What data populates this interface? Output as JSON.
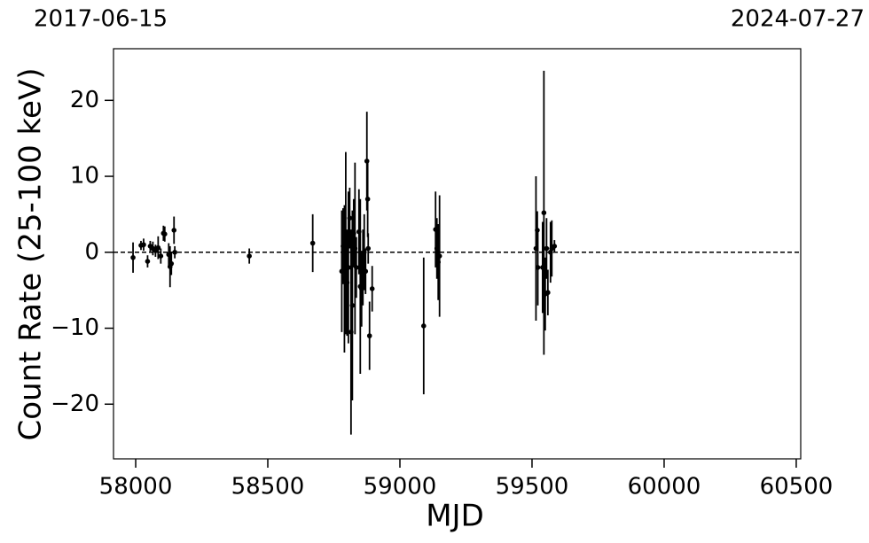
{
  "chart_data": {
    "type": "errorbar",
    "top_labels": [
      "2017-06-15",
      "2024-07-27"
    ],
    "xlabel": "MJD",
    "ylabel": "Count Rate (25-100 keV)",
    "xlim": [
      57916,
      60517
    ],
    "ylim": [
      -27.2,
      26.8
    ],
    "xticks": [
      58000,
      58500,
      59000,
      59500,
      60000,
      60500
    ],
    "yticks": [
      {
        "value": -20,
        "label": "−20"
      },
      {
        "value": -10,
        "label": "−10"
      },
      0,
      10,
      20
    ],
    "hline": 0,
    "color": "#000000",
    "x": [
      57990,
      58020,
      58030,
      58045,
      58055,
      58065,
      58075,
      58085,
      58095,
      58105,
      58110,
      58125,
      58130,
      58135,
      58145,
      58148,
      58430,
      58670,
      58780,
      58785,
      58790,
      58795,
      58800,
      58805,
      58810,
      58815,
      58820,
      58825,
      58830,
      58835,
      58845,
      58850,
      58855,
      58860,
      58865,
      58870,
      58875,
      58878,
      58880,
      58885,
      58895,
      59090,
      59135,
      59140,
      59145,
      59150,
      59515,
      59520,
      59522,
      59540,
      59545,
      59550,
      59555,
      59560,
      59570,
      59575,
      59585
    ],
    "values": [
      -0.7,
      0.9,
      1.0,
      -1.2,
      0.8,
      0.5,
      0.2,
      0.6,
      -0.5,
      2.5,
      2.4,
      -0.3,
      -1.9,
      -1.5,
      2.9,
      0.0,
      -0.5,
      1.2,
      -2.5,
      0.8,
      -3.5,
      1.2,
      -4.0,
      -2.0,
      4.5,
      -10.5,
      -7.0,
      2.5,
      0.5,
      -2.0,
      2.7,
      -4.5,
      -4.8,
      -2.0,
      0.0,
      -2.5,
      12.0,
      7.0,
      0.5,
      -11.0,
      -4.8,
      -9.7,
      3.0,
      0.5,
      -1.3,
      -0.5,
      0.5,
      2.9,
      -2.0,
      -2.0,
      5.2,
      -5.5,
      0.5,
      -5.3,
      0.0,
      0.5,
      0.8
    ],
    "errors": [
      2.0,
      0.6,
      0.8,
      0.8,
      0.7,
      0.9,
      0.8,
      1.5,
      1.0,
      1.0,
      1.0,
      1.5,
      2.7,
      1.5,
      1.8,
      0.8,
      1.0,
      3.8,
      8.0,
      5.0,
      9.7,
      12.0,
      7.0,
      10.0,
      4.0,
      13.5,
      12.5,
      4.5,
      11.3,
      4.0,
      5.6,
      11.5,
      5.0,
      5.0,
      5.0,
      3.0,
      6.5,
      5.0,
      2.0,
      4.5,
      3.0,
      9.0,
      5.0,
      4.0,
      5.0,
      8.0,
      9.5,
      2.5,
      5.0,
      6.0,
      18.7,
      4.8,
      4.0,
      3.0,
      4.0,
      3.7,
      0.8
    ]
  }
}
